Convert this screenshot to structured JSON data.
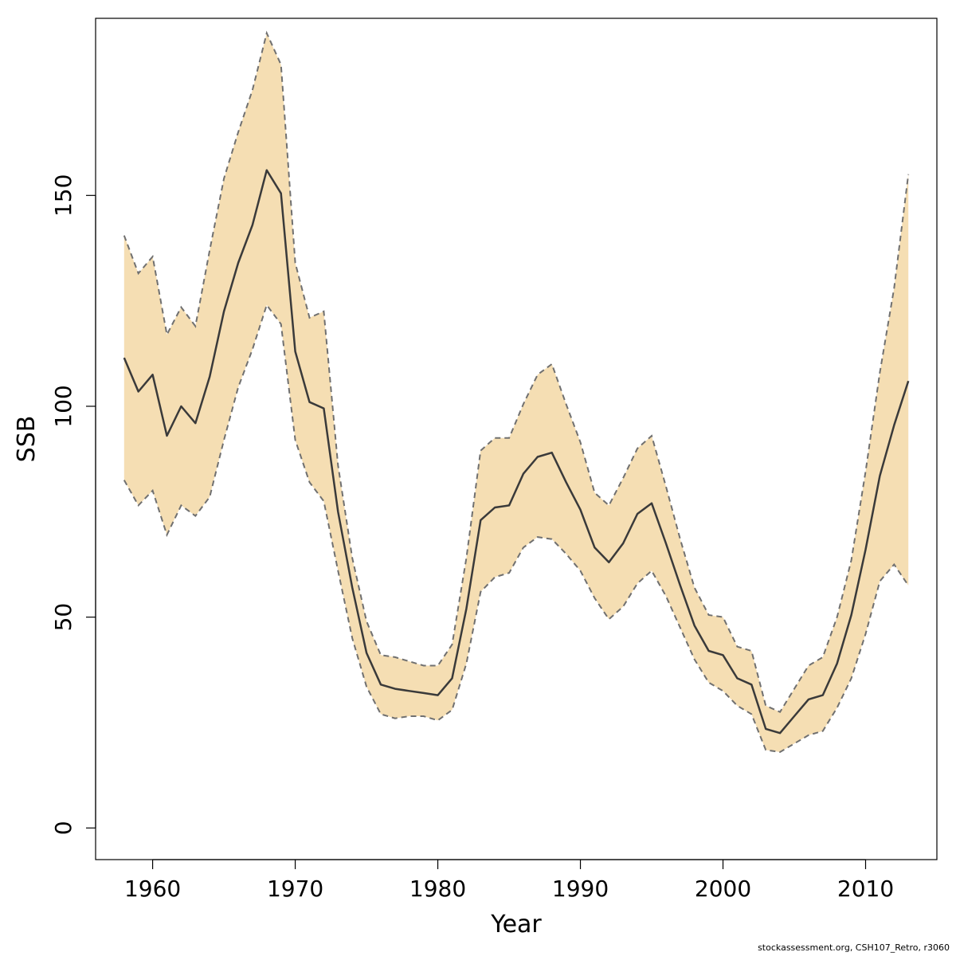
{
  "chart_data": {
    "type": "line",
    "title": "",
    "xlabel": "Year",
    "ylabel": "SSB",
    "xlim": [
      1956,
      2015
    ],
    "ylim": [
      -7.5,
      192
    ],
    "x_ticks": [
      1960,
      1970,
      1980,
      1990,
      2000,
      2010
    ],
    "y_ticks": [
      0,
      50,
      100,
      150
    ],
    "grid": false,
    "legend": "none",
    "colors": {
      "band_fill": "#f5deb3",
      "bound_line": "#707070",
      "estimate_line": "#3a3a3a"
    },
    "x": [
      1958,
      1959,
      1960,
      1961,
      1962,
      1963,
      1964,
      1965,
      1966,
      1967,
      1968,
      1969,
      1970,
      1971,
      1972,
      1973,
      1974,
      1975,
      1976,
      1977,
      1978,
      1979,
      1980,
      1981,
      1982,
      1983,
      1984,
      1985,
      1986,
      1987,
      1988,
      1989,
      1990,
      1991,
      1992,
      1993,
      1994,
      1995,
      1996,
      1997,
      1998,
      1999,
      2000,
      2001,
      2002,
      2003,
      2004,
      2005,
      2006,
      2007,
      2008,
      2009,
      2010,
      2011,
      2012,
      2013
    ],
    "series": [
      {
        "role": "upper",
        "values": [
          140.5,
          131.5,
          135.5,
          117,
          123.5,
          119,
          137,
          154,
          165,
          175,
          188.5,
          181,
          134,
          121,
          122.5,
          86,
          64,
          49,
          41,
          40.5,
          39.5,
          38.5,
          38.5,
          43.5,
          64,
          89.5,
          92.5,
          92.5,
          100.5,
          107.5,
          110,
          100.5,
          91.5,
          79.5,
          76.5,
          83,
          90,
          93,
          81,
          68.5,
          57,
          50.5,
          50,
          43,
          42,
          29,
          27.5,
          33,
          38.5,
          40.5,
          50,
          63.5,
          84.5,
          108,
          128,
          155
        ]
      },
      {
        "role": "estimate",
        "values": [
          111.5,
          103.5,
          107.5,
          93,
          100,
          96,
          107,
          122.5,
          134,
          143,
          156,
          150.5,
          113,
          101,
          99.5,
          75,
          57,
          41.5,
          34,
          33,
          32.5,
          32,
          31.5,
          35.5,
          52,
          73,
          76,
          76.5,
          84,
          88,
          89,
          82,
          75.5,
          66.5,
          63,
          67.5,
          74.5,
          77,
          67.5,
          57.5,
          48,
          42,
          41,
          35.5,
          34,
          23.5,
          22.5,
          26.5,
          30.5,
          31.5,
          39,
          50.5,
          66,
          83.5,
          95.5,
          106
        ]
      },
      {
        "role": "lower",
        "values": [
          82.5,
          76.5,
          80,
          69.5,
          76.5,
          74,
          78.5,
          92,
          104.5,
          113.5,
          124,
          119.5,
          92,
          82,
          77.5,
          61,
          45,
          33.5,
          27,
          26,
          26.5,
          26.5,
          25.5,
          28,
          39,
          56,
          59.5,
          60.5,
          66.5,
          69,
          68.5,
          65,
          61,
          54.5,
          49.5,
          52.5,
          58,
          61,
          55,
          47.5,
          40,
          34.5,
          32.5,
          29,
          27,
          18.5,
          18,
          20,
          22,
          23,
          28.5,
          35.5,
          46,
          58.5,
          62.5,
          57.5
        ]
      }
    ]
  },
  "footer": {
    "text": "stockassessment.org, CSH107_Retro, r3060"
  }
}
